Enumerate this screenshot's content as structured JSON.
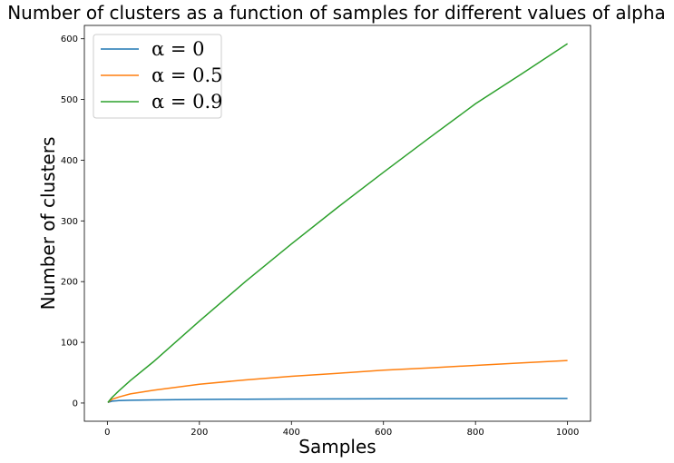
{
  "chart_data": {
    "type": "line",
    "title": "Number of clusters as a function of samples for different values of alpha",
    "xlabel": "Samples",
    "ylabel": "Number of clusters",
    "xlim": [
      -50,
      1050
    ],
    "ylim": [
      -30,
      622
    ],
    "xticks": [
      0,
      200,
      400,
      600,
      800,
      1000
    ],
    "yticks": [
      0,
      100,
      200,
      300,
      400,
      500,
      600
    ],
    "grid": false,
    "legend_position": "top-left",
    "series": [
      {
        "name": "α = 0",
        "color": "#1f77b4",
        "x": [
          1,
          10,
          25,
          50,
          100,
          200,
          300,
          400,
          500,
          600,
          700,
          800,
          900,
          1000
        ],
        "values": [
          1,
          3,
          4,
          4.5,
          5.2,
          5.9,
          6.3,
          6.6,
          6.8,
          7.0,
          7.2,
          7.3,
          7.5,
          7.6
        ]
      },
      {
        "name": "α = 0.5",
        "color": "#ff7f0e",
        "x": [
          1,
          10,
          25,
          50,
          100,
          200,
          300,
          400,
          500,
          600,
          700,
          800,
          900,
          1000
        ],
        "values": [
          1,
          6,
          10,
          15,
          21,
          31,
          38,
          44,
          49,
          54,
          58,
          62,
          66,
          70
        ]
      },
      {
        "name": "α = 0.9",
        "color": "#2ca02c",
        "x": [
          1,
          10,
          25,
          50,
          100,
          200,
          300,
          400,
          500,
          600,
          700,
          800,
          900,
          1000
        ],
        "values": [
          1,
          9,
          20,
          37,
          68,
          135,
          200,
          262,
          322,
          380,
          437,
          493,
          542,
          592
        ]
      }
    ]
  }
}
